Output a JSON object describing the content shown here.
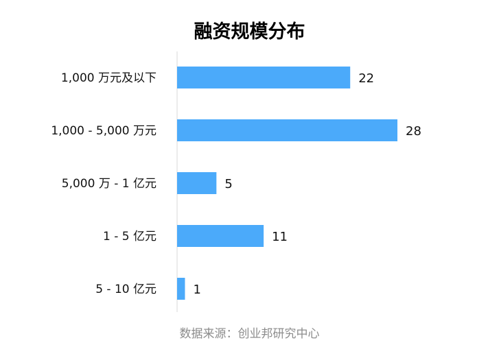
{
  "chart_data": {
    "type": "bar",
    "orientation": "horizontal",
    "title": "融资规模分布",
    "categories": [
      "1,000 万元及以下",
      "1,000 - 5,000 万元",
      "5,000 万 - 1 亿元",
      "1 - 5 亿元",
      "5 - 10 亿元"
    ],
    "values": [
      22,
      28,
      5,
      11,
      1
    ],
    "xlim": [
      0,
      28
    ],
    "grid": false,
    "bar_color": "#4BAAFA",
    "axis_color": "#d9d9d9"
  },
  "source": "数据来源：创业邦研究中心"
}
